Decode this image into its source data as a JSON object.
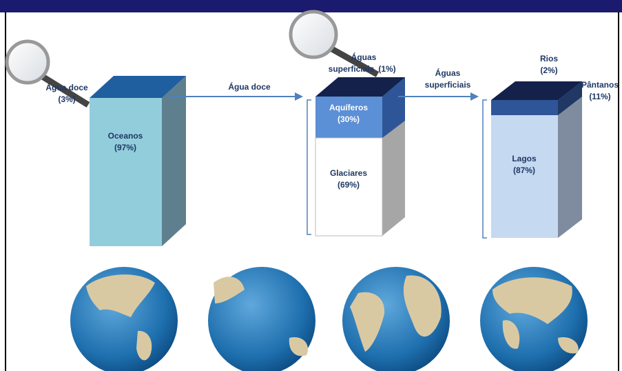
{
  "columns": [
    {
      "label": "Oceanos",
      "share": "(97%)"
    },
    {
      "parts": [
        {
          "label": "Aquíferos",
          "share": "(30%)"
        },
        {
          "label": "Glaciares",
          "share": "(69%)"
        }
      ]
    },
    {
      "label": "Lagos",
      "share": "(87%)"
    }
  ],
  "callouts": [
    {
      "label": "Água doce",
      "share": "(3%)"
    },
    {
      "label": "Águas",
      "label2": "superficiais",
      "share": "(1%)"
    },
    {
      "label": "Rios",
      "share": "(2%)"
    },
    {
      "label": "Pântanos",
      "share": "(11%)"
    }
  ],
  "arrows": [
    {
      "label": "Água doce"
    },
    {
      "label": "Águas",
      "label2": "superficiais"
    }
  ]
}
